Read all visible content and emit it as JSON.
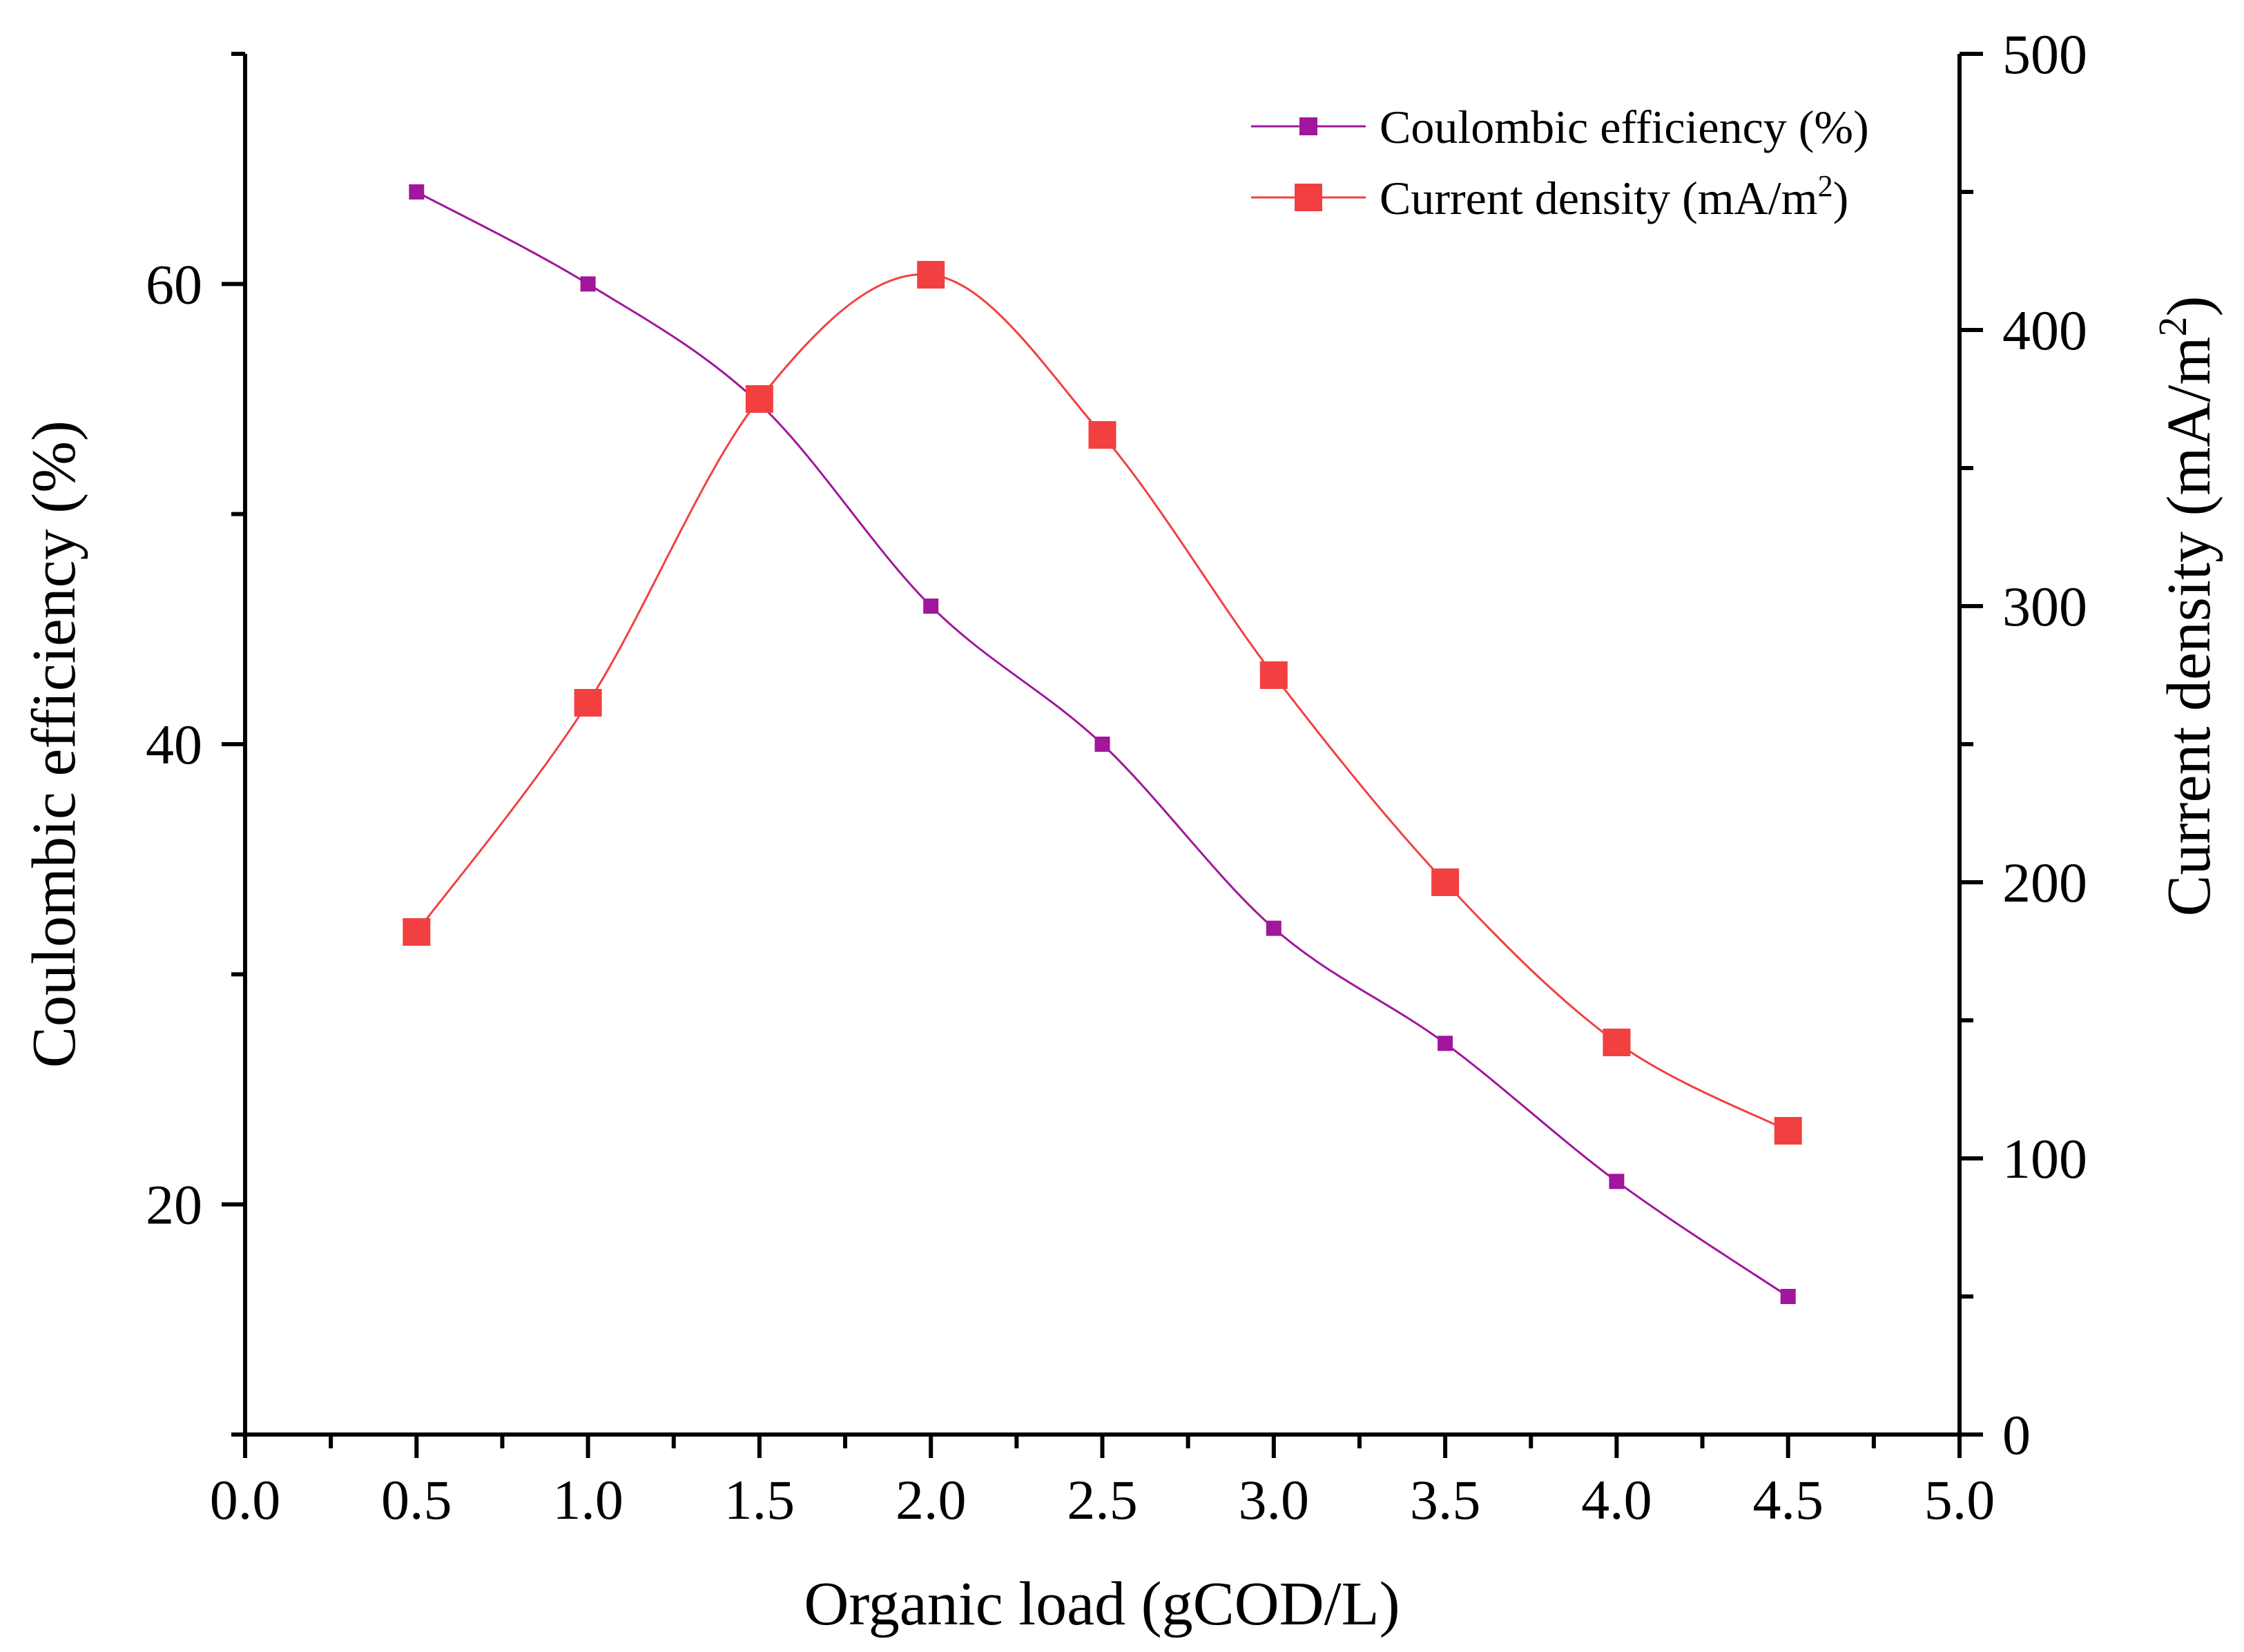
{
  "chart_data": {
    "type": "line",
    "x": [
      0.5,
      1.0,
      1.5,
      2.0,
      2.5,
      3.0,
      3.5,
      4.0,
      4.5
    ],
    "xlabel": "Organic load (gCOD/L)",
    "xlim": [
      0.0,
      5.0
    ],
    "xticks": [
      "0.0",
      "0.5",
      "1.0",
      "1.5",
      "2.0",
      "2.5",
      "3.0",
      "3.5",
      "4.0",
      "4.5",
      "5.0"
    ],
    "ylabel_left": "Coulombic efficiency (%)",
    "ylim_left": [
      10,
      70
    ],
    "yticks_left": [
      "20",
      "40",
      "60"
    ],
    "ylabel_right": "Current density (mA/m",
    "ylabel_right_sup": "2",
    "ylabel_right_close": ")",
    "ylim_right": [
      0,
      500
    ],
    "yticks_right": [
      "0",
      "100",
      "200",
      "300",
      "400",
      "500"
    ],
    "grid": false,
    "legend_position": "top-right",
    "series": [
      {
        "name": "Coulombic efficiency (%)",
        "axis": "left",
        "color": "#a0169c",
        "marker": "square-small",
        "values": [
          64,
          60,
          54.8,
          46,
          40,
          32,
          27,
          21,
          16
        ]
      },
      {
        "name": "Current density (mA/m",
        "name_sup": "2",
        "name_close": ")",
        "axis": "right",
        "color": "#f24040",
        "marker": "square-large",
        "values": [
          182,
          265,
          375,
          420,
          362,
          275,
          200,
          142,
          110
        ]
      }
    ]
  }
}
